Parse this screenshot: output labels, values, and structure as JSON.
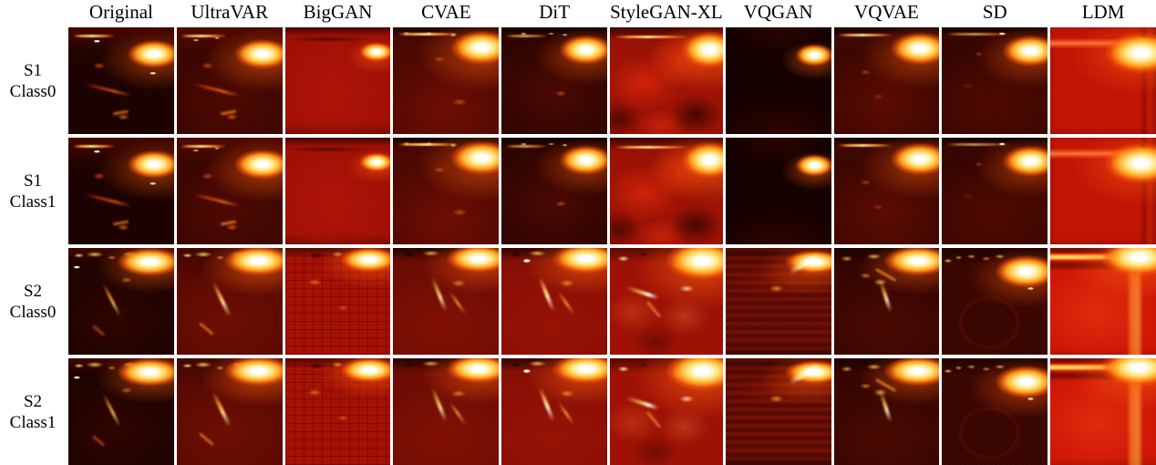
{
  "figure": {
    "column_headers": [
      "Original",
      "UltraVAR",
      "BigGAN",
      "CVAE",
      "DiT",
      "StyleGAN-XL",
      "VQGAN",
      "VQVAE",
      "SD",
      "LDM"
    ],
    "column_keys": [
      "original",
      "ultravar",
      "biggan",
      "cvae",
      "dit",
      "stylegan",
      "vqgan",
      "vqvae",
      "sd",
      "ldm"
    ],
    "rows": [
      {
        "id": "s1-class0",
        "group": "s1",
        "label_lines": [
          "S1",
          "Class0"
        ]
      },
      {
        "id": "s1-class1",
        "group": "s1",
        "label_lines": [
          "S1",
          "Class1"
        ]
      },
      {
        "id": "s2-class0",
        "group": "s2",
        "label_lines": [
          "S2",
          "Class0"
        ]
      },
      {
        "id": "s2-class1",
        "group": "s2",
        "label_lines": [
          "S2",
          "Class1"
        ]
      }
    ],
    "cell_visual": "thermal-heatmap-sample"
  },
  "palette": {
    "page_background": "#ffffff",
    "label_text": "#000000",
    "heat_dark": "#1c0200",
    "heat_red": "#a81105",
    "heat_bright_red": "#c81505",
    "flame_core": "#ffffff",
    "flame_mid": "#ffe47d",
    "flame_outer": "#ff9a1e"
  }
}
